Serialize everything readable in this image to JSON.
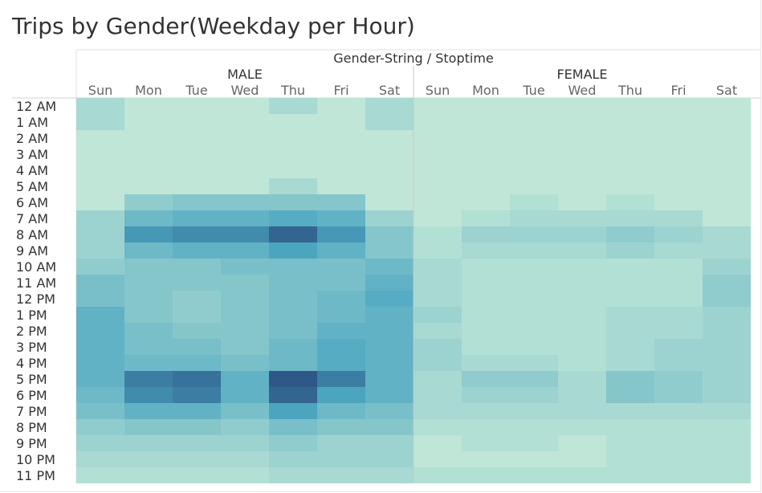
{
  "title": "Trips by Gender(Weekday per Hour)",
  "chart_data": {
    "type": "heatmap",
    "title": "Trips by Gender(Weekday per Hour)",
    "column_header": "Gender-String / Stoptime",
    "groups": [
      "MALE",
      "FEMALE"
    ],
    "days": [
      "Sun",
      "Mon",
      "Tue",
      "Wed",
      "Thu",
      "Fri",
      "Sat"
    ],
    "hours": [
      "12 AM",
      "1 AM",
      "2 AM",
      "3 AM",
      "4 AM",
      "5 AM",
      "6 AM",
      "7 AM",
      "8 AM",
      "9 AM",
      "10 AM",
      "11 AM",
      "12 PM",
      "1 PM",
      "2 PM",
      "3 PM",
      "4 PM",
      "5 PM",
      "6 PM",
      "7 PM",
      "8 PM",
      "9 PM",
      "10 PM",
      "11 PM"
    ],
    "color_scale": {
      "low": "#bfe6d7",
      "mid": "#4ba6c0",
      "high": "#2d5887"
    },
    "values": {
      "MALE": [
        [
          2,
          0,
          0,
          0,
          2,
          0,
          2
        ],
        [
          2,
          0,
          0,
          0,
          0,
          0,
          2
        ],
        [
          0,
          0,
          0,
          0,
          0,
          0,
          0
        ],
        [
          0,
          0,
          0,
          0,
          0,
          0,
          0
        ],
        [
          0,
          0,
          0,
          0,
          0,
          0,
          0
        ],
        [
          0,
          0,
          0,
          0,
          2,
          0,
          0
        ],
        [
          0,
          4,
          5,
          5,
          5,
          5,
          0
        ],
        [
          3,
          7,
          8,
          8,
          9,
          8,
          3
        ],
        [
          3,
          11,
          12,
          12,
          15,
          11,
          5
        ],
        [
          3,
          7,
          8,
          8,
          10,
          8,
          5
        ],
        [
          4,
          5,
          5,
          6,
          6,
          6,
          7
        ],
        [
          6,
          5,
          5,
          5,
          6,
          6,
          8
        ],
        [
          6,
          5,
          4,
          5,
          6,
          7,
          9
        ],
        [
          8,
          5,
          4,
          5,
          6,
          7,
          8
        ],
        [
          8,
          6,
          5,
          5,
          6,
          8,
          8
        ],
        [
          8,
          6,
          6,
          5,
          7,
          9,
          8
        ],
        [
          8,
          7,
          7,
          6,
          7,
          9,
          8
        ],
        [
          8,
          13,
          14,
          8,
          16,
          13,
          8
        ],
        [
          7,
          12,
          13,
          8,
          15,
          10,
          8
        ],
        [
          6,
          8,
          8,
          6,
          10,
          7,
          6
        ],
        [
          4,
          5,
          5,
          4,
          6,
          5,
          5
        ],
        [
          3,
          3,
          3,
          3,
          4,
          3,
          3
        ],
        [
          2,
          2,
          2,
          2,
          3,
          3,
          3
        ],
        [
          1,
          1,
          1,
          1,
          2,
          2,
          2
        ]
      ],
      "FEMALE": [
        [
          0,
          0,
          0,
          0,
          0,
          0,
          0
        ],
        [
          0,
          0,
          0,
          0,
          0,
          0,
          0
        ],
        [
          0,
          0,
          0,
          0,
          0,
          0,
          0
        ],
        [
          0,
          0,
          0,
          0,
          0,
          0,
          0
        ],
        [
          0,
          0,
          0,
          0,
          0,
          0,
          0
        ],
        [
          0,
          0,
          0,
          0,
          0,
          0,
          0
        ],
        [
          0,
          0,
          1,
          0,
          1,
          0,
          0
        ],
        [
          0,
          1,
          2,
          2,
          2,
          2,
          0
        ],
        [
          1,
          3,
          3,
          3,
          4,
          3,
          2
        ],
        [
          1,
          2,
          2,
          2,
          3,
          2,
          2
        ],
        [
          2,
          1,
          1,
          1,
          1,
          1,
          3
        ],
        [
          2,
          1,
          1,
          1,
          1,
          1,
          4
        ],
        [
          2,
          1,
          1,
          1,
          1,
          1,
          4
        ],
        [
          3,
          1,
          1,
          1,
          2,
          2,
          3
        ],
        [
          2,
          1,
          1,
          1,
          2,
          2,
          3
        ],
        [
          3,
          1,
          1,
          1,
          2,
          3,
          3
        ],
        [
          3,
          2,
          2,
          1,
          2,
          3,
          3
        ],
        [
          2,
          4,
          4,
          2,
          5,
          4,
          3
        ],
        [
          2,
          3,
          3,
          2,
          5,
          4,
          3
        ],
        [
          2,
          2,
          2,
          2,
          2,
          2,
          2
        ],
        [
          1,
          1,
          1,
          1,
          1,
          1,
          1
        ],
        [
          0,
          1,
          1,
          0,
          1,
          1,
          1
        ],
        [
          0,
          0,
          0,
          0,
          1,
          1,
          1
        ],
        [
          1,
          1,
          1,
          1,
          1,
          1,
          1
        ]
      ]
    },
    "value_range": [
      0,
      16
    ]
  }
}
